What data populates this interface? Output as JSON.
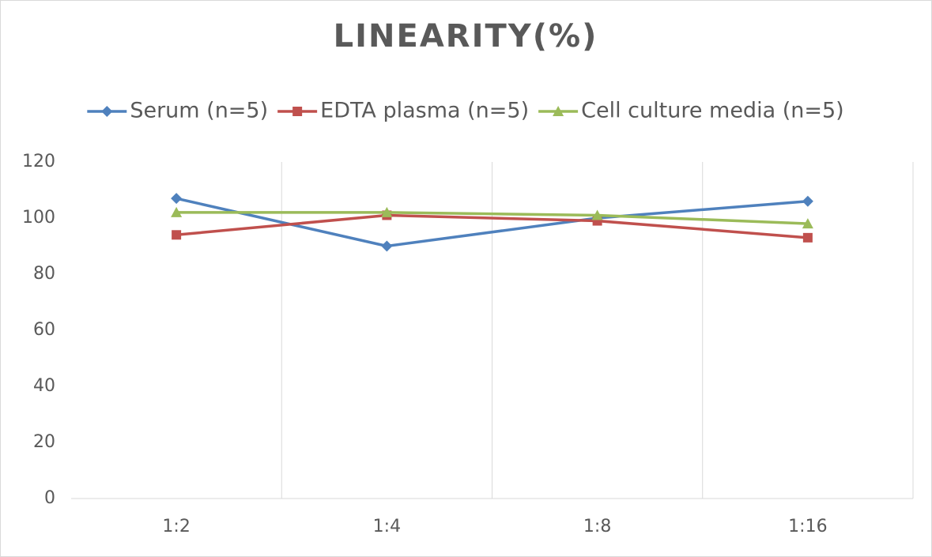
{
  "chart_data": {
    "type": "line",
    "title": "LINEARITY(%)",
    "categories": [
      "1:2",
      "1:4",
      "1:8",
      "1:16"
    ],
    "series": [
      {
        "name": "Serum (n=5)",
        "color": "#4f81bd",
        "marker": "diamond",
        "values": [
          107,
          90,
          100,
          106
        ]
      },
      {
        "name": "EDTA plasma (n=5)",
        "color": "#c0504d",
        "marker": "square",
        "values": [
          94,
          101,
          99,
          93
        ]
      },
      {
        "name": "Cell culture media (n=5)",
        "color": "#9bbb59",
        "marker": "triangle",
        "values": [
          102,
          102,
          101,
          98
        ]
      }
    ],
    "ylim": [
      0,
      120
    ],
    "yticks": [
      0,
      20,
      40,
      60,
      80,
      100,
      120
    ],
    "legend": "top"
  }
}
